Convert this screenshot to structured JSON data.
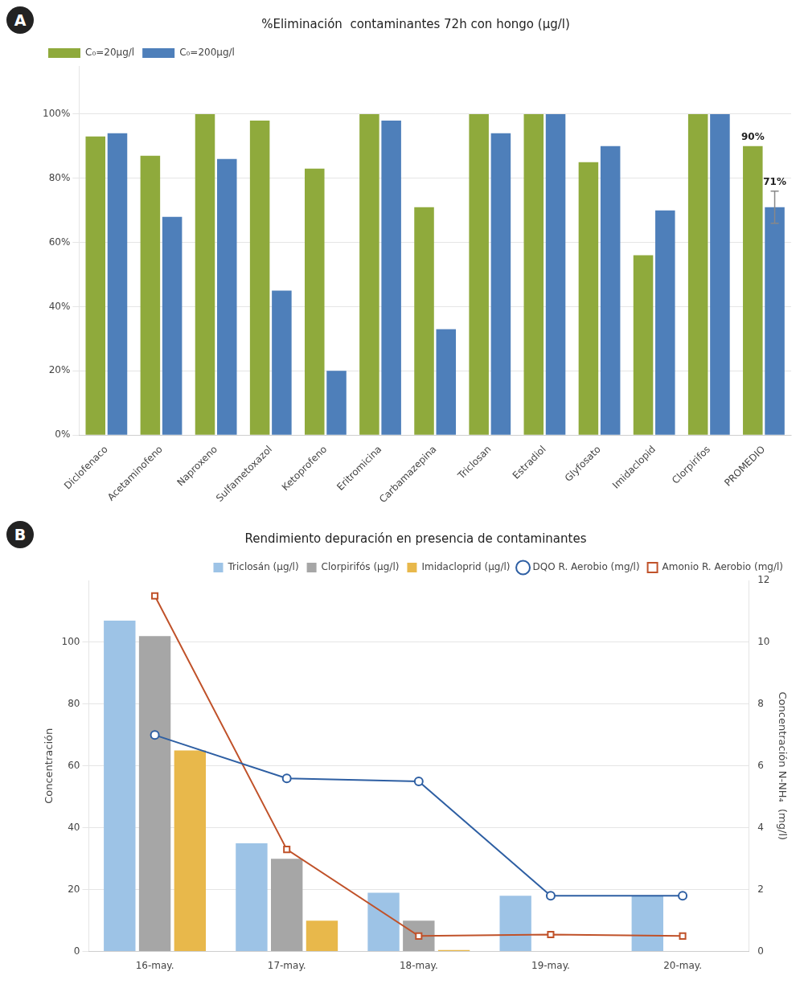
{
  "chart_data": [
    {
      "type": "bar",
      "panel_label": "A",
      "title": "%Eliminación  contaminantes 72h con hongo (µg/l)",
      "categories": [
        "Diclofenaco",
        "Acetaminofeno",
        "Naproxeno",
        "Sulfametoxazol",
        "Ketoprofeno",
        "Eritromicina",
        "Carbamazepina",
        "Triclosan",
        "Estradiol",
        "Glyfosato",
        "Imidaclopid",
        "Clorpirifos",
        "PROMEDIO"
      ],
      "series": [
        {
          "name": "C₀=20µg/l",
          "color": "#8faa3c",
          "values": [
            93,
            87,
            100,
            98,
            83,
            100,
            71,
            100,
            100,
            85,
            56,
            100,
            90
          ]
        },
        {
          "name": "C₀=200µg/l",
          "color": "#4e7fba",
          "values": [
            94,
            68,
            86,
            45,
            20,
            98,
            33,
            94,
            100,
            90,
            70,
            100,
            71
          ],
          "errors": [
            null,
            null,
            null,
            null,
            null,
            null,
            null,
            null,
            null,
            null,
            null,
            null,
            5
          ]
        }
      ],
      "ylim": [
        0,
        115
      ],
      "yticks": [
        {
          "value": 0,
          "label": "0%"
        },
        {
          "value": 20,
          "label": "20%"
        },
        {
          "value": 40,
          "label": "40%"
        },
        {
          "value": 60,
          "label": "60%"
        },
        {
          "value": 80,
          "label": "80%"
        },
        {
          "value": 100,
          "label": "100%"
        }
      ],
      "grid": true,
      "legend": "upper left",
      "annotations": [
        {
          "text": "90%",
          "category": "PROMEDIO",
          "series": "C₀=20µg/l"
        },
        {
          "text": "71%",
          "category": "PROMEDIO",
          "series": "C₀=200µg/l"
        }
      ]
    },
    {
      "type": "bar",
      "panel_label": "B",
      "title": "Rendimiento depuración en presencia de contaminantes",
      "categories": [
        "16-may.",
        "17-may.",
        "18-may.",
        "19-may.",
        "20-may."
      ],
      "series": [
        {
          "name": "Triclosán (µg/l)",
          "color": "#9dc3e6",
          "values": [
            107,
            35,
            19,
            18,
            18
          ]
        },
        {
          "name": "Clorpirifós (µg/l)",
          "color": "#a6a6a6",
          "values": [
            102,
            30,
            10,
            0,
            0
          ]
        },
        {
          "name": "Imidacloprid (µg/l)",
          "color": "#e8b84b",
          "values": [
            65,
            10,
            0.5,
            0,
            0
          ]
        },
        {
          "name": "DQO R. Aerobio (mg/l)",
          "type": "line",
          "color": "#2e5fa3",
          "marker": "circle",
          "values": [
            70,
            56,
            55,
            18,
            18
          ]
        },
        {
          "name": "Amonio R. Aerobio (mg/l)",
          "type": "line",
          "axis": "y2",
          "color": "#c0522a",
          "marker": "square",
          "values": [
            11.5,
            3.3,
            0.5,
            0.55,
            0.5
          ]
        }
      ],
      "ylabel": "Concentración",
      "y2label": "Concentración N-NH₄  (mg/l)",
      "ylim": [
        0,
        120
      ],
      "yticks": [
        0,
        20,
        40,
        60,
        80,
        100
      ],
      "y2lim": [
        0,
        12
      ],
      "y2ticks": [
        0,
        2,
        4,
        6,
        8,
        10,
        12
      ],
      "grid": true,
      "legend": "upper right"
    }
  ]
}
